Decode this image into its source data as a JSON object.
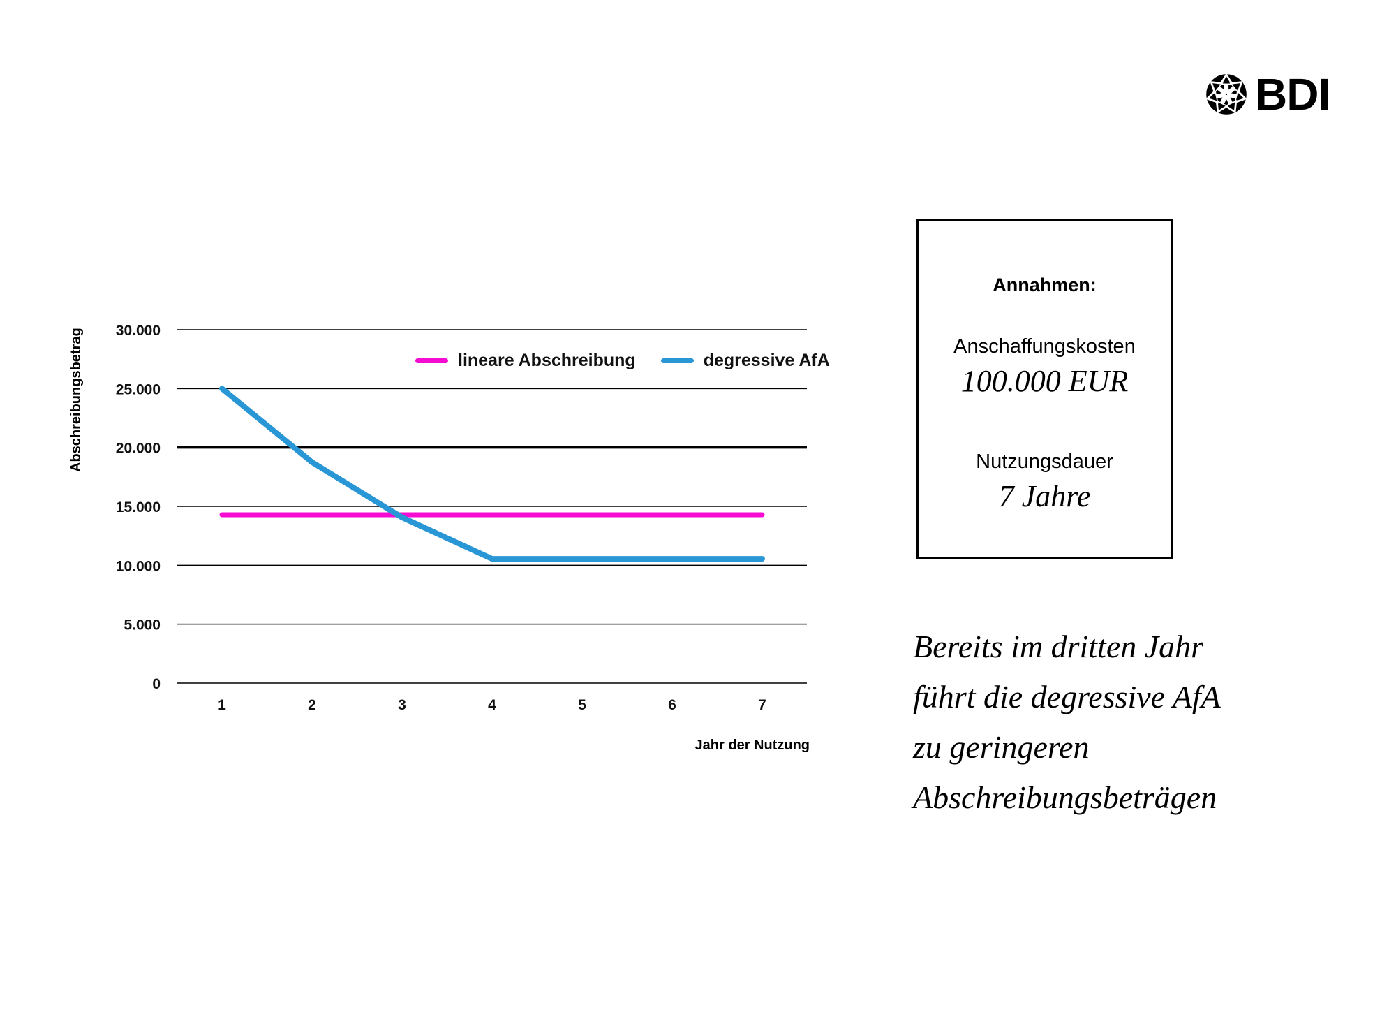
{
  "logo": {
    "name": "BDI"
  },
  "chart": {
    "y_axis_title": "Abschreibungsbetrag",
    "x_axis_title": "Jahr der Nutzung",
    "legend": [
      {
        "label": "lineare Abschreibung",
        "color": "#F50BD2"
      },
      {
        "label": "degressive AfA",
        "color": "#2996D5"
      }
    ]
  },
  "chart_data": {
    "type": "line",
    "title": "",
    "xlabel": "Jahr der Nutzung",
    "ylabel": "Abschreibungsbetrag",
    "x": [
      1,
      2,
      3,
      4,
      5,
      6,
      7
    ],
    "ylim": [
      0,
      30000
    ],
    "yticks": [
      30000,
      25000,
      20000,
      15000,
      10000,
      5000,
      0
    ],
    "ytick_labels": [
      "30.000",
      "25.000",
      "20.000",
      "15.000",
      "10.000",
      "5.000",
      "0"
    ],
    "emphasized_gridline": 20000,
    "grid": true,
    "legend_position": "inside-top",
    "series": [
      {
        "name": "lineare Abschreibung",
        "color": "#F50BD2",
        "values": [
          14286,
          14286,
          14286,
          14286,
          14286,
          14286,
          14286
        ]
      },
      {
        "name": "degressive AfA",
        "color": "#2996D5",
        "values": [
          25000,
          18750,
          14063,
          10547,
          10547,
          10547,
          10547
        ]
      }
    ]
  },
  "assumptions": {
    "title": "Annahmen:",
    "items": [
      {
        "label": "Anschaffungskosten",
        "value": "100.000 EUR"
      },
      {
        "label": "Nutzungsdauer",
        "value": "7 Jahre"
      }
    ]
  },
  "callout": {
    "lines": [
      "Bereits im dritten Jahr",
      "führt die degressive AfA",
      "zu geringeren",
      "Abschreibungsbeträgen"
    ]
  }
}
